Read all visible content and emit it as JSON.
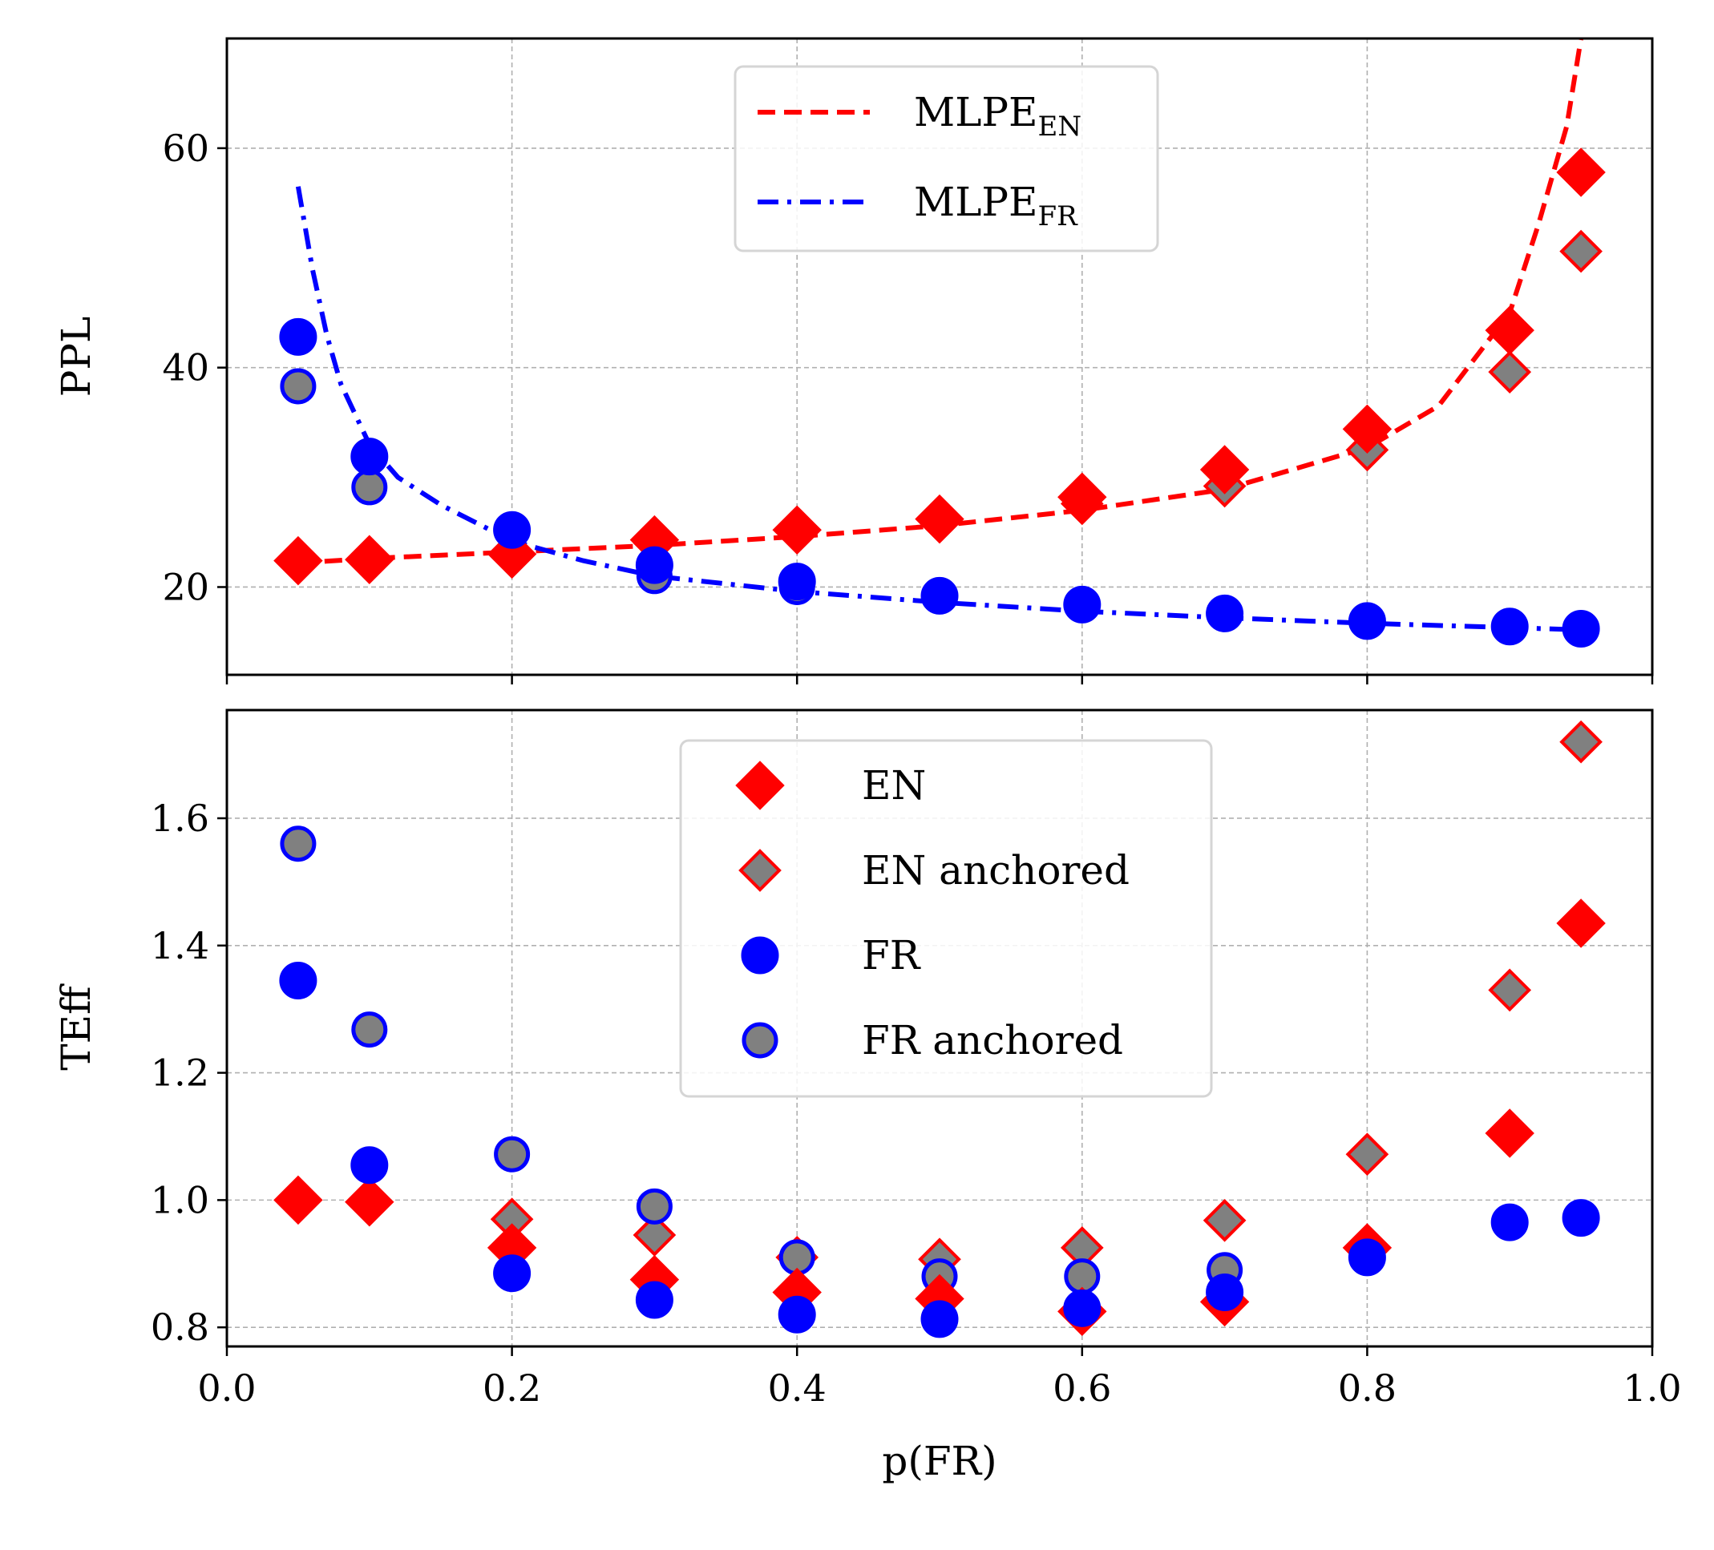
{
  "chart_data": [
    {
      "type": "line+scatter",
      "panel": "top",
      "ylabel": "PPL",
      "xlabel": "",
      "xlim": [
        0.0,
        1.0
      ],
      "ylim": [
        12,
        70
      ],
      "yticks": [
        20,
        40,
        60
      ],
      "grid": true,
      "legend_position": "top-center",
      "lines": [
        {
          "name": "MLPE",
          "subscript": "EN",
          "color": "#ff0000",
          "style": "dashed",
          "x": [
            0.05,
            0.1,
            0.2,
            0.3,
            0.4,
            0.5,
            0.6,
            0.7,
            0.8,
            0.85,
            0.9,
            0.92,
            0.94,
            0.95
          ],
          "y": [
            22.2,
            22.6,
            23.2,
            23.8,
            24.6,
            25.6,
            27.0,
            28.9,
            32.7,
            36.5,
            45.0,
            53.0,
            62.0,
            70.0
          ]
        },
        {
          "name": "MLPE",
          "subscript": "FR",
          "color": "#0000ff",
          "style": "dashdot",
          "x": [
            0.05,
            0.06,
            0.07,
            0.08,
            0.1,
            0.12,
            0.15,
            0.2,
            0.25,
            0.3,
            0.4,
            0.5,
            0.6,
            0.7,
            0.8,
            0.9,
            0.95
          ],
          "y": [
            56.5,
            49.0,
            43.0,
            38.5,
            33.0,
            30.0,
            27.5,
            24.2,
            22.4,
            21.0,
            19.6,
            18.6,
            17.8,
            17.2,
            16.7,
            16.3,
            16.1
          ]
        }
      ],
      "series": [
        {
          "name": "EN",
          "marker": "diamond",
          "fill": "#ff0000",
          "edge": "#ff0000",
          "x": [
            0.05,
            0.1,
            0.2,
            0.3,
            0.4,
            0.5,
            0.6,
            0.7,
            0.8,
            0.9,
            0.95
          ],
          "y": [
            22.4,
            22.5,
            23.0,
            24.3,
            25.2,
            26.2,
            28.2,
            30.7,
            34.4,
            43.4,
            57.8
          ]
        },
        {
          "name": "EN anchored",
          "marker": "diamond",
          "fill": "#808080",
          "edge": "#ff0000",
          "x": [
            0.2,
            0.3,
            0.4,
            0.5,
            0.6,
            0.7,
            0.8,
            0.9,
            0.95
          ],
          "y": [
            23.0,
            24.0,
            25.0,
            26.0,
            27.6,
            29.2,
            32.5,
            39.6,
            50.6
          ]
        },
        {
          "name": "FR",
          "marker": "circle",
          "fill": "#0000ff",
          "edge": "#0000ff",
          "x": [
            0.05,
            0.1,
            0.2,
            0.3,
            0.4,
            0.5,
            0.6,
            0.7,
            0.8,
            0.9,
            0.95
          ],
          "y": [
            42.8,
            31.9,
            25.2,
            22.0,
            20.5,
            19.2,
            18.4,
            17.6,
            16.9,
            16.4,
            16.2
          ]
        },
        {
          "name": "FR anchored",
          "marker": "circle",
          "fill": "#808080",
          "edge": "#0000ff",
          "x": [
            0.05,
            0.1,
            0.3,
            0.4
          ],
          "y": [
            38.3,
            29.1,
            21.0,
            20.0
          ]
        }
      ]
    },
    {
      "type": "scatter",
      "panel": "bottom",
      "ylabel": "TEff",
      "xlabel": "p(FR)",
      "xlim": [
        0.0,
        1.0
      ],
      "ylim": [
        0.77,
        1.77
      ],
      "yticks": [
        0.8,
        1.0,
        1.2,
        1.4,
        1.6
      ],
      "ytick_labels": [
        "0.8",
        "1.0",
        "1.2",
        "1.4",
        "1.6"
      ],
      "xticks": [
        0.0,
        0.2,
        0.4,
        0.6,
        0.8,
        1.0
      ],
      "xtick_labels": [
        "0.0",
        "0.2",
        "0.4",
        "0.6",
        "0.8",
        "1.0"
      ],
      "grid": true,
      "legend_position": "top-center",
      "series": [
        {
          "name": "EN",
          "marker": "diamond",
          "fill": "#ff0000",
          "edge": "#ff0000",
          "x": [
            0.05,
            0.1,
            0.2,
            0.3,
            0.4,
            0.5,
            0.6,
            0.7,
            0.8,
            0.9,
            0.95
          ],
          "y": [
            1.0,
            0.997,
            0.925,
            0.875,
            0.855,
            0.845,
            0.825,
            0.84,
            0.925,
            1.105,
            1.435
          ]
        },
        {
          "name": "EN anchored",
          "marker": "diamond",
          "fill": "#808080",
          "edge": "#ff0000",
          "x": [
            0.2,
            0.3,
            0.4,
            0.5,
            0.6,
            0.7,
            0.8,
            0.9,
            0.95
          ],
          "y": [
            0.97,
            0.945,
            0.91,
            0.907,
            0.925,
            0.968,
            1.072,
            1.33,
            1.72
          ]
        },
        {
          "name": "FR",
          "marker": "circle",
          "fill": "#0000ff",
          "edge": "#0000ff",
          "x": [
            0.05,
            0.1,
            0.2,
            0.3,
            0.4,
            0.5,
            0.6,
            0.7,
            0.8,
            0.9,
            0.95
          ],
          "y": [
            1.345,
            1.055,
            0.885,
            0.843,
            0.82,
            0.813,
            0.83,
            0.855,
            0.91,
            0.965,
            0.972
          ]
        },
        {
          "name": "FR anchored",
          "marker": "circle",
          "fill": "#808080",
          "edge": "#0000ff",
          "x": [
            0.05,
            0.1,
            0.2,
            0.3,
            0.4,
            0.5,
            0.6,
            0.7
          ],
          "y": [
            1.56,
            1.268,
            1.072,
            0.99,
            0.91,
            0.88,
            0.88,
            0.89
          ]
        }
      ]
    }
  ]
}
